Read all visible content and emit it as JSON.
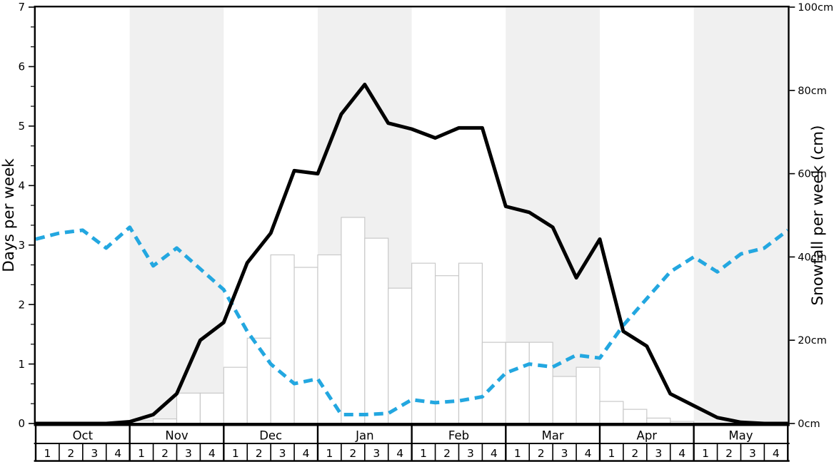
{
  "chart_data": {
    "type": "mixed",
    "title": "",
    "x_axis": {
      "months": [
        {
          "label": "Oct",
          "shaded": false
        },
        {
          "label": "Nov",
          "shaded": true
        },
        {
          "label": "Dec",
          "shaded": false
        },
        {
          "label": "Jan",
          "shaded": true
        },
        {
          "label": "Feb",
          "shaded": false
        },
        {
          "label": "Mar",
          "shaded": true
        },
        {
          "label": "Apr",
          "shaded": false
        },
        {
          "label": "May",
          "shaded": true
        }
      ],
      "weeks_per_month": 4,
      "week_labels": [
        "1",
        "2",
        "3",
        "4"
      ]
    },
    "left_axis": {
      "title": "Days per week",
      "min": 0,
      "max": 7,
      "major_ticks": [
        0,
        1,
        2,
        3,
        4,
        5,
        6,
        7
      ],
      "minor_ticks_per_unit": 3
    },
    "right_axis": {
      "title": "Snowfall per week (cm)",
      "min": 0,
      "max": 100,
      "major_ticks": [
        0,
        20,
        40,
        60,
        80,
        100
      ],
      "tick_suffix": "cm"
    },
    "series": [
      {
        "name": "snowfall-per-week-bars",
        "type": "bar",
        "axis": "right",
        "unit": "cm",
        "fill": "#ffffff",
        "stroke": "#c9c9c9",
        "note": "one bar per week, Oct w1 through May w4",
        "values_per_week": [
          0,
          0,
          0,
          0,
          0.6,
          1.1,
          7.3,
          7.3,
          13.5,
          20.5,
          40.5,
          37.5,
          40.5,
          49.5,
          44.5,
          32.5,
          38.5,
          35.5,
          38.5,
          19.5,
          19.5,
          19.5,
          11.3,
          13.5,
          5.3,
          3.4,
          1.3,
          0.5,
          0,
          0,
          0,
          0
        ]
      },
      {
        "name": "days-per-week-dashed-blue-line",
        "type": "line",
        "style": "dashed",
        "axis": "left",
        "color": "#23a7e0",
        "note": "33 points sampled at week boundaries from season start to end",
        "values_at_week_boundaries": [
          3.1,
          3.2,
          3.25,
          2.95,
          3.3,
          2.65,
          2.95,
          2.6,
          2.25,
          1.55,
          1.0,
          0.67,
          0.75,
          0.15,
          0.15,
          0.17,
          0.4,
          0.35,
          0.38,
          0.45,
          0.85,
          1.0,
          0.95,
          1.15,
          1.1,
          1.65,
          2.1,
          2.55,
          2.8,
          2.55,
          2.85,
          2.95,
          3.25
        ]
      },
      {
        "name": "days-per-week-solid-black-line",
        "type": "line",
        "style": "solid",
        "axis": "left",
        "color": "#000000",
        "note": "33 points sampled at week boundaries from season start to end",
        "values_at_week_boundaries": [
          0,
          0,
          0,
          0,
          0.03,
          0.15,
          0.5,
          1.4,
          1.7,
          2.7,
          3.2,
          4.25,
          4.2,
          5.2,
          5.7,
          5.05,
          4.95,
          4.8,
          4.97,
          4.97,
          3.65,
          3.55,
          3.3,
          2.45,
          3.1,
          1.55,
          1.3,
          0.5,
          0.3,
          0.1,
          0.02,
          0,
          0
        ]
      }
    ],
    "colors": {
      "shaded_band": "#f0f0f0",
      "axis_title_text": "#555555",
      "tick_text": "#000000",
      "table_border": "#000000"
    },
    "legend": "none",
    "grid": "off"
  }
}
